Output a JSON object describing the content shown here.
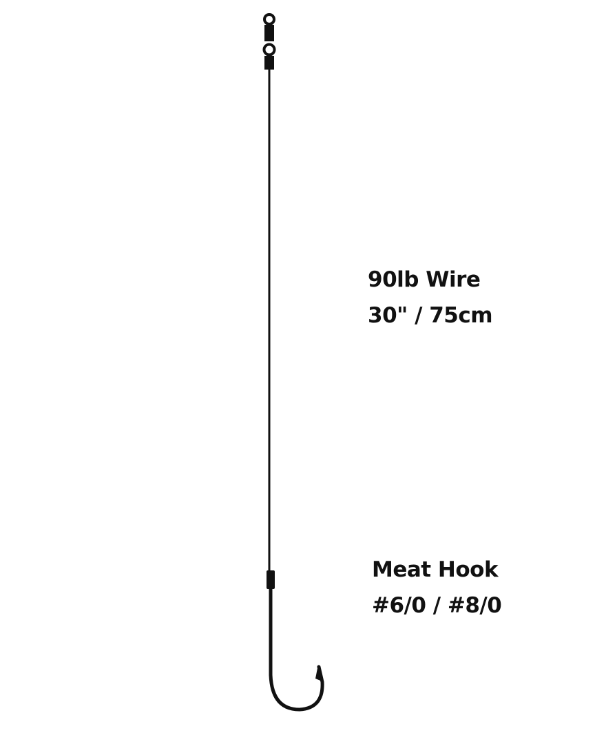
{
  "wire_label": {
    "line1": "90lb Wire",
    "line2": "30\" / 75cm"
  },
  "hook_label": {
    "line1": "Meat Hook",
    "line2": "#6/0 / #8/0"
  },
  "colors": {
    "line": "#111111",
    "background": "#ffffff"
  }
}
